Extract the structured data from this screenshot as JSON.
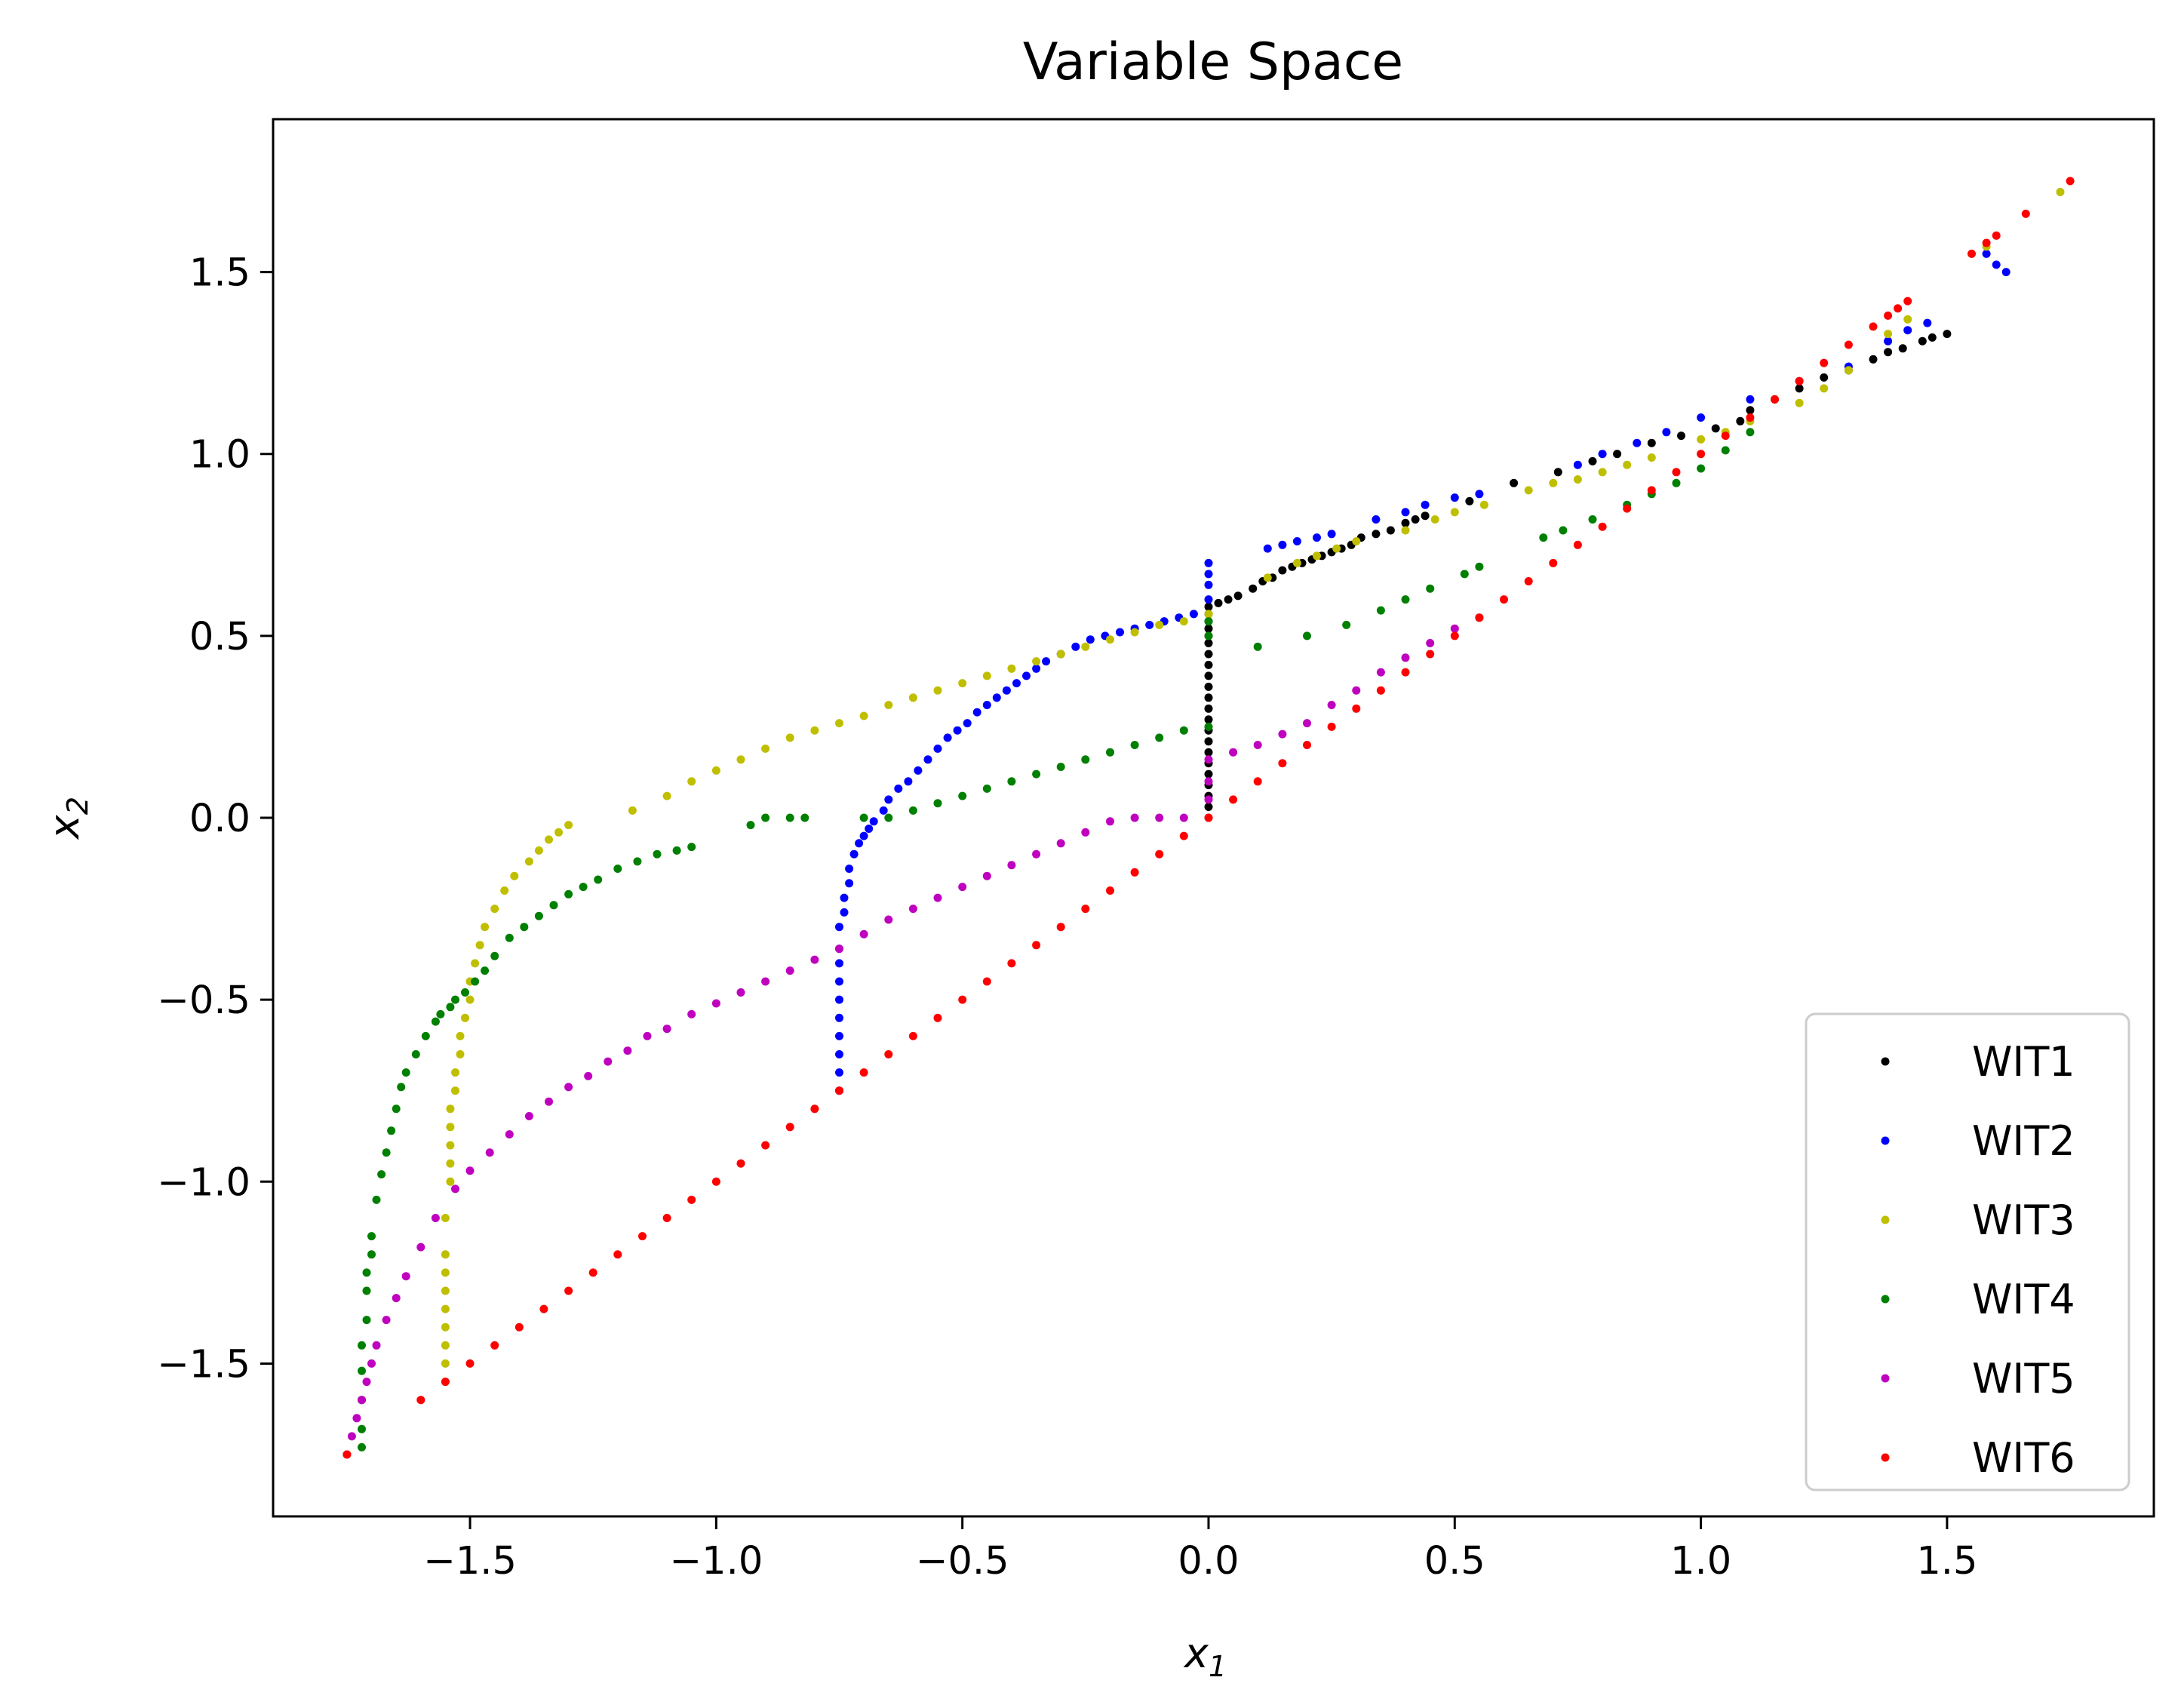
{
  "chart_data": {
    "type": "scatter",
    "title": "Variable Space",
    "xlabel": "x",
    "xlabel_sub": "1",
    "ylabel": "x",
    "ylabel_sub": "2",
    "xlim": [
      -1.9,
      1.92
    ],
    "ylim": [
      -1.92,
      1.92
    ],
    "x_ticks": [
      -1.5,
      -1.0,
      -0.5,
      0.0,
      0.5,
      1.0,
      1.5
    ],
    "x_tick_labels": [
      "−1.5",
      "−1.0",
      "−0.5",
      "0.0",
      "0.5",
      "1.0",
      "1.5"
    ],
    "y_ticks": [
      -1.5,
      -1.0,
      -0.5,
      0.0,
      0.5,
      1.0,
      1.5
    ],
    "y_tick_labels": [
      "−1.5",
      "−1.0",
      "−0.5",
      "0.0",
      "0.5",
      "1.0",
      "1.5"
    ],
    "grid": false,
    "legend_position": "lower-right",
    "series": [
      {
        "name": "WIT1",
        "color": "#000000",
        "x": [
          0.0,
          0.0,
          0.0,
          0.0,
          0.0,
          0.0,
          0.0,
          0.0,
          0.0,
          0.0,
          0.0,
          0.0,
          0.0,
          0.0,
          0.0,
          0.0,
          0.0,
          0.0,
          0.0,
          0.0,
          0.0,
          0.02,
          0.04,
          0.06,
          0.09,
          0.11,
          0.13,
          0.15,
          0.17,
          0.19,
          0.21,
          0.23,
          0.25,
          0.27,
          0.29,
          0.31,
          0.34,
          0.37,
          0.4,
          0.42,
          0.44,
          0.53,
          0.62,
          0.71,
          0.78,
          0.83,
          0.9,
          0.96,
          1.03,
          1.08,
          1.1,
          1.15,
          1.2,
          1.25,
          1.3,
          1.35,
          1.38,
          1.41,
          1.45,
          1.47,
          1.5
        ],
        "y": [
          0.03,
          0.06,
          0.09,
          0.12,
          0.15,
          0.18,
          0.21,
          0.24,
          0.27,
          0.3,
          0.33,
          0.36,
          0.39,
          0.42,
          0.45,
          0.48,
          0.5,
          0.52,
          0.54,
          0.56,
          0.58,
          0.59,
          0.6,
          0.61,
          0.63,
          0.65,
          0.66,
          0.68,
          0.69,
          0.7,
          0.71,
          0.72,
          0.73,
          0.74,
          0.75,
          0.77,
          0.78,
          0.79,
          0.81,
          0.82,
          0.83,
          0.87,
          0.92,
          0.95,
          0.98,
          1.0,
          1.03,
          1.05,
          1.07,
          1.09,
          1.12,
          1.15,
          1.18,
          1.21,
          1.23,
          1.26,
          1.28,
          1.29,
          1.31,
          1.32,
          1.33
        ]
      },
      {
        "name": "WIT2",
        "color": "#0000ff",
        "x": [
          -0.75,
          -0.75,
          -0.75,
          -0.75,
          -0.75,
          -0.75,
          -0.75,
          -0.75,
          -0.75,
          -0.75,
          -0.74,
          -0.74,
          -0.73,
          -0.73,
          -0.72,
          -0.71,
          -0.7,
          -0.69,
          -0.68,
          -0.66,
          -0.65,
          -0.63,
          -0.61,
          -0.59,
          -0.57,
          -0.55,
          -0.53,
          -0.51,
          -0.49,
          -0.47,
          -0.45,
          -0.43,
          -0.41,
          -0.39,
          -0.37,
          -0.35,
          -0.33,
          -0.3,
          -0.27,
          -0.24,
          -0.21,
          -0.18,
          -0.15,
          -0.12,
          -0.09,
          -0.06,
          -0.03,
          0.0,
          0.0,
          0.0,
          0.0,
          0.12,
          0.15,
          0.18,
          0.22,
          0.25,
          0.34,
          0.4,
          0.44,
          0.5,
          0.55,
          0.75,
          0.8,
          0.87,
          0.93,
          1.0,
          1.1,
          1.2,
          1.3,
          1.38,
          1.42,
          1.46,
          1.58,
          1.6,
          1.62
        ],
        "y": [
          -0.75,
          -0.7,
          -0.65,
          -0.6,
          -0.55,
          -0.5,
          -0.45,
          -0.4,
          -0.36,
          -0.3,
          -0.26,
          -0.22,
          -0.18,
          -0.14,
          -0.1,
          -0.07,
          -0.05,
          -0.03,
          -0.01,
          0.02,
          0.05,
          0.08,
          0.1,
          0.13,
          0.16,
          0.19,
          0.22,
          0.24,
          0.26,
          0.29,
          0.31,
          0.33,
          0.35,
          0.37,
          0.39,
          0.41,
          0.43,
          0.45,
          0.47,
          0.49,
          0.5,
          0.51,
          0.52,
          0.53,
          0.54,
          0.55,
          0.56,
          0.6,
          0.64,
          0.67,
          0.7,
          0.74,
          0.75,
          0.76,
          0.77,
          0.78,
          0.82,
          0.84,
          0.86,
          0.88,
          0.89,
          0.97,
          1.0,
          1.03,
          1.06,
          1.1,
          1.15,
          1.2,
          1.24,
          1.31,
          1.34,
          1.36,
          1.55,
          1.52,
          1.5
        ]
      },
      {
        "name": "WIT3",
        "color": "#bfbf00",
        "x": [
          -1.55,
          -1.55,
          -1.55,
          -1.55,
          -1.55,
          -1.55,
          -1.55,
          -1.55,
          -1.55,
          -1.54,
          -1.54,
          -1.54,
          -1.54,
          -1.54,
          -1.53,
          -1.53,
          -1.52,
          -1.52,
          -1.51,
          -1.5,
          -1.5,
          -1.49,
          -1.48,
          -1.47,
          -1.45,
          -1.43,
          -1.41,
          -1.38,
          -1.36,
          -1.34,
          -1.32,
          -1.3,
          -1.17,
          -1.1,
          -1.05,
          -1.0,
          -0.95,
          -0.9,
          -0.85,
          -0.8,
          -0.75,
          -0.7,
          -0.65,
          -0.6,
          -0.55,
          -0.5,
          -0.45,
          -0.4,
          -0.35,
          -0.3,
          -0.25,
          -0.2,
          -0.15,
          -0.1,
          -0.05,
          0.0,
          0.12,
          0.18,
          0.22,
          0.26,
          0.3,
          0.4,
          0.46,
          0.5,
          0.56,
          0.65,
          0.7,
          0.75,
          0.8,
          0.85,
          0.9,
          1.0,
          1.05,
          1.1,
          1.2,
          1.25,
          1.3,
          1.38,
          1.42,
          1.58,
          1.73
        ],
        "y": [
          -1.55,
          -1.5,
          -1.45,
          -1.4,
          -1.35,
          -1.3,
          -1.25,
          -1.2,
          -1.1,
          -1.0,
          -0.95,
          -0.9,
          -0.85,
          -0.8,
          -0.75,
          -0.7,
          -0.65,
          -0.6,
          -0.55,
          -0.5,
          -0.45,
          -0.4,
          -0.35,
          -0.3,
          -0.25,
          -0.2,
          -0.16,
          -0.12,
          -0.09,
          -0.06,
          -0.04,
          -0.02,
          0.02,
          0.06,
          0.1,
          0.13,
          0.16,
          0.19,
          0.22,
          0.24,
          0.26,
          0.28,
          0.31,
          0.33,
          0.35,
          0.37,
          0.39,
          0.41,
          0.43,
          0.45,
          0.47,
          0.49,
          0.51,
          0.53,
          0.54,
          0.56,
          0.66,
          0.7,
          0.72,
          0.74,
          0.76,
          0.79,
          0.82,
          0.84,
          0.86,
          0.9,
          0.92,
          0.93,
          0.95,
          0.97,
          0.99,
          1.04,
          1.06,
          1.09,
          1.14,
          1.18,
          1.23,
          1.33,
          1.37,
          1.57,
          1.72
        ]
      },
      {
        "name": "WIT4",
        "color": "#008000",
        "x": [
          -1.72,
          -1.72,
          -1.72,
          -1.72,
          -1.72,
          -1.71,
          -1.71,
          -1.71,
          -1.7,
          -1.7,
          -1.69,
          -1.68,
          -1.67,
          -1.66,
          -1.65,
          -1.64,
          -1.63,
          -1.61,
          -1.59,
          -1.57,
          -1.56,
          -1.54,
          -1.53,
          -1.51,
          -1.49,
          -1.47,
          -1.45,
          -1.42,
          -1.39,
          -1.36,
          -1.33,
          -1.3,
          -1.27,
          -1.24,
          -1.2,
          -1.16,
          -1.12,
          -1.08,
          -1.05,
          -0.93,
          -0.9,
          -0.85,
          -0.82,
          -0.7,
          -0.65,
          -0.6,
          -0.55,
          -0.5,
          -0.45,
          -0.4,
          -0.35,
          -0.3,
          -0.25,
          -0.2,
          -0.15,
          -0.1,
          -0.05,
          0.0,
          0.0,
          0.0,
          0.1,
          0.2,
          0.28,
          0.35,
          0.4,
          0.45,
          0.52,
          0.55,
          0.68,
          0.72,
          0.78,
          0.85,
          0.9,
          0.95,
          1.0,
          1.05,
          1.1
        ],
        "y": [
          -1.73,
          -1.68,
          -1.6,
          -1.52,
          -1.45,
          -1.38,
          -1.3,
          -1.25,
          -1.2,
          -1.15,
          -1.05,
          -0.98,
          -0.92,
          -0.86,
          -0.8,
          -0.74,
          -0.7,
          -0.65,
          -0.6,
          -0.56,
          -0.54,
          -0.52,
          -0.5,
          -0.48,
          -0.45,
          -0.42,
          -0.38,
          -0.33,
          -0.3,
          -0.27,
          -0.24,
          -0.21,
          -0.19,
          -0.17,
          -0.14,
          -0.12,
          -0.1,
          -0.09,
          -0.08,
          -0.02,
          0.0,
          0.0,
          0.0,
          0.0,
          0.0,
          0.02,
          0.04,
          0.06,
          0.08,
          0.1,
          0.12,
          0.14,
          0.16,
          0.18,
          0.2,
          0.22,
          0.24,
          0.25,
          0.5,
          0.54,
          0.47,
          0.5,
          0.53,
          0.57,
          0.6,
          0.63,
          0.67,
          0.69,
          0.77,
          0.79,
          0.82,
          0.86,
          0.89,
          0.92,
          0.96,
          1.01,
          1.06
        ]
      },
      {
        "name": "WIT5",
        "color": "#bf00bf",
        "x": [
          -1.75,
          -1.74,
          -1.73,
          -1.72,
          -1.71,
          -1.7,
          -1.69,
          -1.67,
          -1.65,
          -1.63,
          -1.6,
          -1.57,
          -1.53,
          -1.5,
          -1.46,
          -1.42,
          -1.38,
          -1.34,
          -1.3,
          -1.26,
          -1.22,
          -1.18,
          -1.14,
          -1.1,
          -1.05,
          -1.0,
          -0.95,
          -0.9,
          -0.85,
          -0.8,
          -0.75,
          -0.7,
          -0.65,
          -0.6,
          -0.55,
          -0.5,
          -0.45,
          -0.4,
          -0.35,
          -0.3,
          -0.25,
          -0.2,
          -0.15,
          -0.1,
          -0.05,
          0.0,
          0.0,
          0.0,
          0.0,
          0.05,
          0.1,
          0.15,
          0.2,
          0.25,
          0.3,
          0.35,
          0.4,
          0.45,
          0.5,
          0.55
        ],
        "y": [
          -1.75,
          -1.7,
          -1.65,
          -1.6,
          -1.55,
          -1.5,
          -1.45,
          -1.38,
          -1.32,
          -1.26,
          -1.18,
          -1.1,
          -1.02,
          -0.97,
          -0.92,
          -0.87,
          -0.82,
          -0.78,
          -0.74,
          -0.71,
          -0.67,
          -0.64,
          -0.6,
          -0.58,
          -0.54,
          -0.51,
          -0.48,
          -0.45,
          -0.42,
          -0.39,
          -0.36,
          -0.32,
          -0.28,
          -0.25,
          -0.22,
          -0.19,
          -0.16,
          -0.13,
          -0.1,
          -0.07,
          -0.04,
          -0.01,
          0.0,
          0.0,
          0.0,
          0.0,
          0.05,
          0.1,
          0.16,
          0.18,
          0.2,
          0.23,
          0.26,
          0.31,
          0.35,
          0.4,
          0.44,
          0.48,
          0.52,
          0.55
        ]
      },
      {
        "name": "WIT6",
        "color": "#ff0000",
        "x": [
          -1.75,
          -1.6,
          -1.55,
          -1.5,
          -1.45,
          -1.4,
          -1.35,
          -1.3,
          -1.25,
          -1.2,
          -1.15,
          -1.1,
          -1.05,
          -1.0,
          -0.95,
          -0.9,
          -0.85,
          -0.8,
          -0.75,
          -0.7,
          -0.65,
          -0.6,
          -0.55,
          -0.5,
          -0.45,
          -0.4,
          -0.35,
          -0.3,
          -0.25,
          -0.2,
          -0.15,
          -0.1,
          -0.05,
          0.0,
          0.05,
          0.1,
          0.15,
          0.2,
          0.25,
          0.3,
          0.35,
          0.4,
          0.45,
          0.5,
          0.55,
          0.6,
          0.65,
          0.7,
          0.75,
          0.8,
          0.85,
          0.9,
          0.95,
          1.0,
          1.05,
          1.1,
          1.15,
          1.2,
          1.25,
          1.3,
          1.35,
          1.38,
          1.4,
          1.42,
          1.55,
          1.58,
          1.6,
          1.66,
          1.75
        ],
        "y": [
          -1.75,
          -1.6,
          -1.55,
          -1.5,
          -1.45,
          -1.4,
          -1.35,
          -1.3,
          -1.25,
          -1.2,
          -1.15,
          -1.1,
          -1.05,
          -1.0,
          -0.95,
          -0.9,
          -0.85,
          -0.8,
          -0.75,
          -0.7,
          -0.65,
          -0.6,
          -0.55,
          -0.5,
          -0.45,
          -0.4,
          -0.35,
          -0.3,
          -0.25,
          -0.2,
          -0.15,
          -0.1,
          -0.05,
          0.0,
          0.05,
          0.1,
          0.15,
          0.2,
          0.25,
          0.3,
          0.35,
          0.4,
          0.45,
          0.5,
          0.55,
          0.6,
          0.65,
          0.7,
          0.75,
          0.8,
          0.85,
          0.9,
          0.95,
          1.0,
          1.05,
          1.1,
          1.15,
          1.2,
          1.25,
          1.3,
          1.35,
          1.38,
          1.4,
          1.42,
          1.55,
          1.58,
          1.6,
          1.66,
          1.75
        ]
      }
    ]
  }
}
